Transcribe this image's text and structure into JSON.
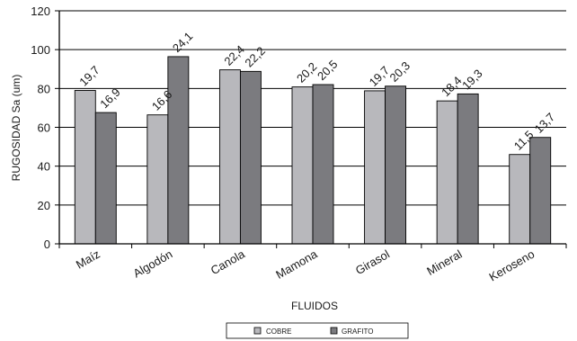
{
  "chart_data": {
    "type": "bar",
    "categories": [
      "Maíz",
      "Algodón",
      "Canola",
      "Mamona",
      "Girasol",
      "Mineral",
      "Keroseno"
    ],
    "series": [
      {
        "name": "COBRE",
        "values": [
          79,
          66.4,
          89.6,
          80.8,
          78.8,
          73.6,
          46
        ],
        "labels": [
          "19,7",
          "16,6",
          "22,4",
          "20,2",
          "19,7",
          "18,4",
          "11,5"
        ],
        "color": "#b8b8bc"
      },
      {
        "name": "GRAFITO",
        "values": [
          67.6,
          96.4,
          88.8,
          82,
          81.2,
          77.2,
          54.8
        ],
        "labels": [
          "16,9",
          "24,1",
          "22,2",
          "20,5",
          "20,3",
          "19,3",
          "13,7"
        ],
        "color": "#7b7b7f"
      }
    ],
    "xlabel": "FLUIDOS",
    "ylabel": "RUGOSIDAD Sa (um)",
    "ylim": [
      0,
      120
    ],
    "yticks": [
      0,
      20,
      40,
      60,
      80,
      100,
      120
    ],
    "grid": true,
    "legend": "bottom"
  }
}
